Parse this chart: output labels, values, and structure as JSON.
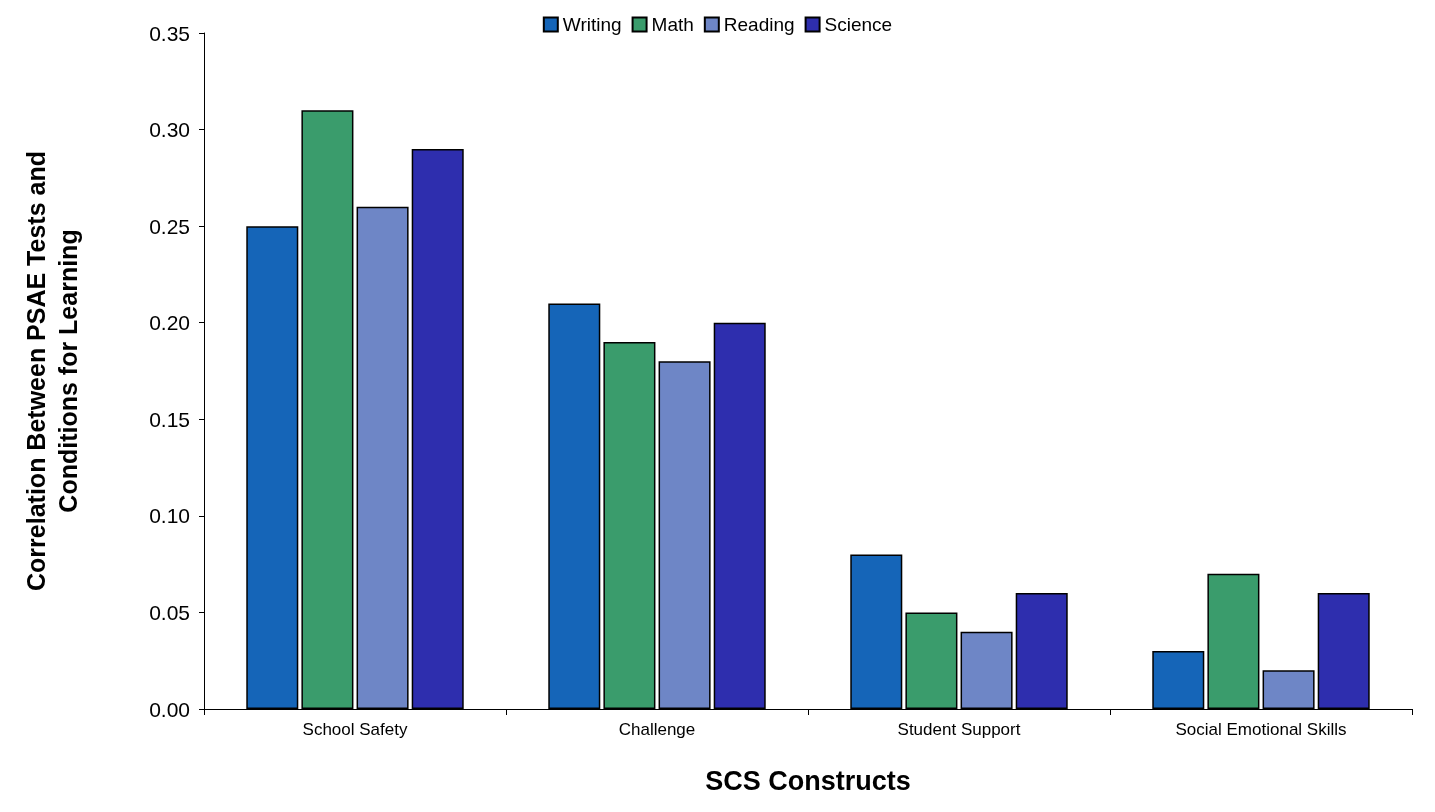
{
  "chart_data": {
    "type": "bar",
    "xlabel": "SCS Constructs",
    "ylabel": "Correlation Between PSAE Tests and\nConditions for Learning",
    "categories": [
      "School Safety",
      "Challenge",
      "Student Support",
      "Social Emotional Skills"
    ],
    "series": [
      {
        "name": "Writing",
        "color": "#1565b8",
        "values": [
          0.25,
          0.21,
          0.08,
          0.03
        ]
      },
      {
        "name": "Math",
        "color": "#3a9c6c",
        "values": [
          0.31,
          0.19,
          0.05,
          0.07
        ]
      },
      {
        "name": "Reading",
        "color": "#6e86c6",
        "values": [
          0.26,
          0.18,
          0.04,
          0.02
        ]
      },
      {
        "name": "Science",
        "color": "#2e2eae",
        "values": [
          0.29,
          0.2,
          0.06,
          0.06
        ]
      }
    ],
    "ylim": [
      0,
      0.35
    ],
    "yticks": [
      {
        "value": 0,
        "label": "0.00"
      },
      {
        "value": 0.05,
        "label": "0.05"
      },
      {
        "value": 0.1,
        "label": "0.10"
      },
      {
        "value": 0.15,
        "label": "0.15"
      },
      {
        "value": 0.2,
        "label": "0.20"
      },
      {
        "value": 0.25,
        "label": "0.25"
      },
      {
        "value": 0.3,
        "label": "0.30"
      },
      {
        "value": 0.35,
        "label": "0.35"
      }
    ],
    "grid": false,
    "legend": "top"
  }
}
